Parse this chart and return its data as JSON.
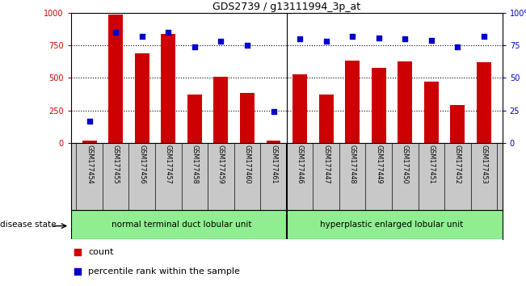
{
  "title": "GDS2739 / g13111994_3p_at",
  "samples": [
    "GSM177454",
    "GSM177455",
    "GSM177456",
    "GSM177457",
    "GSM177458",
    "GSM177459",
    "GSM177460",
    "GSM177461",
    "GSM177446",
    "GSM177447",
    "GSM177448",
    "GSM177449",
    "GSM177450",
    "GSM177451",
    "GSM177452",
    "GSM177453"
  ],
  "counts": [
    20,
    990,
    690,
    840,
    375,
    510,
    385,
    20,
    530,
    370,
    635,
    575,
    625,
    470,
    290,
    620
  ],
  "percentiles": [
    17,
    85,
    82,
    85,
    74,
    78,
    75,
    24,
    80,
    78,
    82,
    81,
    80,
    79,
    74,
    82
  ],
  "bar_color": "#cc0000",
  "dot_color": "#0000cc",
  "group1_label": "normal terminal duct lobular unit",
  "group2_label": "hyperplastic enlarged lobular unit",
  "group1_count": 8,
  "group2_count": 8,
  "group_color": "#90ee90",
  "disease_state_label": "disease state",
  "legend_count_label": "count",
  "legend_pct_label": "percentile rank within the sample",
  "ylim_left": [
    0,
    1000
  ],
  "ylim_right": [
    0,
    100
  ],
  "yticks_left": [
    0,
    250,
    500,
    750,
    1000
  ],
  "yticks_right": [
    0,
    25,
    50,
    75,
    100
  ],
  "left_axis_color": "#cc0000",
  "right_axis_color": "#0000cc",
  "bg_color": "#ffffff",
  "tick_area_color": "#c8c8c8",
  "border_color": "#000000"
}
